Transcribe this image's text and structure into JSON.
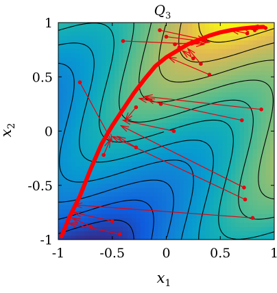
{
  "chart_data": {
    "type": "contour",
    "title": "Q",
    "title_subscript": "3",
    "xlabel": "x",
    "xlabel_subscript": "1",
    "ylabel": "x",
    "ylabel_subscript": "2",
    "xlim": [
      -1,
      1
    ],
    "ylim": [
      -1,
      1
    ],
    "xticks": [
      -1,
      -0.5,
      0,
      0.5,
      1
    ],
    "xtick_labels": [
      "-1",
      "-0.5",
      "0",
      "0.5",
      "1"
    ],
    "yticks": [
      -1,
      -0.5,
      0,
      0.5,
      1
    ],
    "ytick_labels": [
      "-1",
      "-0.5",
      "0",
      "0.5",
      "1"
    ],
    "grid": false,
    "colormap": "parula",
    "contour_lines": {
      "color": "#000000",
      "levels": [
        -2.1,
        -1.75,
        -1.4,
        -1.05,
        -0.7,
        -0.35,
        0,
        0.35,
        0.7,
        1.05,
        1.4,
        1.75,
        2.1
      ]
    },
    "curve": {
      "color": "#ff0000",
      "points": [
        {
          "x": -0.97,
          "y": -0.97
        },
        {
          "x": -0.9,
          "y": -0.8
        },
        {
          "x": -0.8,
          "y": -0.6
        },
        {
          "x": -0.7,
          "y": -0.35
        },
        {
          "x": -0.6,
          "y": -0.12
        },
        {
          "x": -0.5,
          "y": 0.05
        },
        {
          "x": -0.4,
          "y": 0.2
        },
        {
          "x": -0.3,
          "y": 0.35
        },
        {
          "x": -0.2,
          "y": 0.48
        },
        {
          "x": -0.1,
          "y": 0.6
        },
        {
          "x": 0.0,
          "y": 0.68
        },
        {
          "x": 0.1,
          "y": 0.74
        },
        {
          "x": 0.2,
          "y": 0.8
        },
        {
          "x": 0.3,
          "y": 0.84
        },
        {
          "x": 0.4,
          "y": 0.88
        },
        {
          "x": 0.5,
          "y": 0.91
        },
        {
          "x": 0.6,
          "y": 0.93
        },
        {
          "x": 0.7,
          "y": 0.945
        },
        {
          "x": 0.8,
          "y": 0.955
        },
        {
          "x": 0.9,
          "y": 0.96
        }
      ]
    },
    "arrows": {
      "color": "#e8000b",
      "samples": [
        {
          "x0": -0.06,
          "y0": 0.93,
          "x1": 0.36,
          "y1": 0.84
        },
        {
          "x0": -0.4,
          "y0": 0.83,
          "x1": 0.35,
          "y1": 0.8
        },
        {
          "x0": 0.0,
          "y0": 0.87,
          "x1": 0.4,
          "y1": 0.82
        },
        {
          "x0": 0.12,
          "y0": 0.77,
          "x1": 0.38,
          "y1": 0.83
        },
        {
          "x0": 0.08,
          "y0": 0.8,
          "x1": 0.3,
          "y1": 0.82
        },
        {
          "x0": 0.32,
          "y0": 0.62,
          "x1": 0.2,
          "y1": 0.76
        },
        {
          "x0": 0.4,
          "y0": 0.52,
          "x1": 0.02,
          "y1": 0.68
        },
        {
          "x0": 0.25,
          "y0": 0.67,
          "x1": 0.15,
          "y1": 0.74
        },
        {
          "x0": 0.75,
          "y0": 0.9,
          "x1": 0.6,
          "y1": 0.93
        },
        {
          "x0": 0.82,
          "y0": 0.93,
          "x1": 0.7,
          "y1": 0.95
        },
        {
          "x0": 0.92,
          "y0": 0.95,
          "x1": 0.78,
          "y1": 0.96
        },
        {
          "x0": -0.8,
          "y0": 0.45,
          "x1": -0.5,
          "y1": -0.1
        },
        {
          "x0": -0.05,
          "y0": 0.25,
          "x1": -0.18,
          "y1": 0.3
        },
        {
          "x0": 0.7,
          "y0": 0.1,
          "x1": -0.25,
          "y1": 0.3
        },
        {
          "x0": 0.88,
          "y0": 0.2,
          "x1": -0.2,
          "y1": 0.32
        },
        {
          "x0": -0.28,
          "y0": 0.22,
          "x1": -0.38,
          "y1": 0.1
        },
        {
          "x0": 0.07,
          "y0": 0.0,
          "x1": -0.4,
          "y1": 0.1
        },
        {
          "x0": -0.28,
          "y0": -0.15,
          "x1": -0.45,
          "y1": -0.05
        },
        {
          "x0": -0.58,
          "y0": -0.22,
          "x1": -0.52,
          "y1": -0.08
        },
        {
          "x0": 0.72,
          "y0": -0.52,
          "x1": -0.42,
          "y1": 0.05
        },
        {
          "x0": 0.73,
          "y0": -0.63,
          "x1": -0.5,
          "y1": -0.05
        },
        {
          "x0": 0.8,
          "y0": -0.8,
          "x1": -0.85,
          "y1": -0.68
        },
        {
          "x0": -0.5,
          "y0": -0.83,
          "x1": -0.86,
          "y1": -0.75
        },
        {
          "x0": -0.43,
          "y0": -0.95,
          "x1": -0.9,
          "y1": -0.85
        },
        {
          "x0": -0.7,
          "y0": -0.88,
          "x1": -0.87,
          "y1": -0.8
        }
      ]
    }
  }
}
